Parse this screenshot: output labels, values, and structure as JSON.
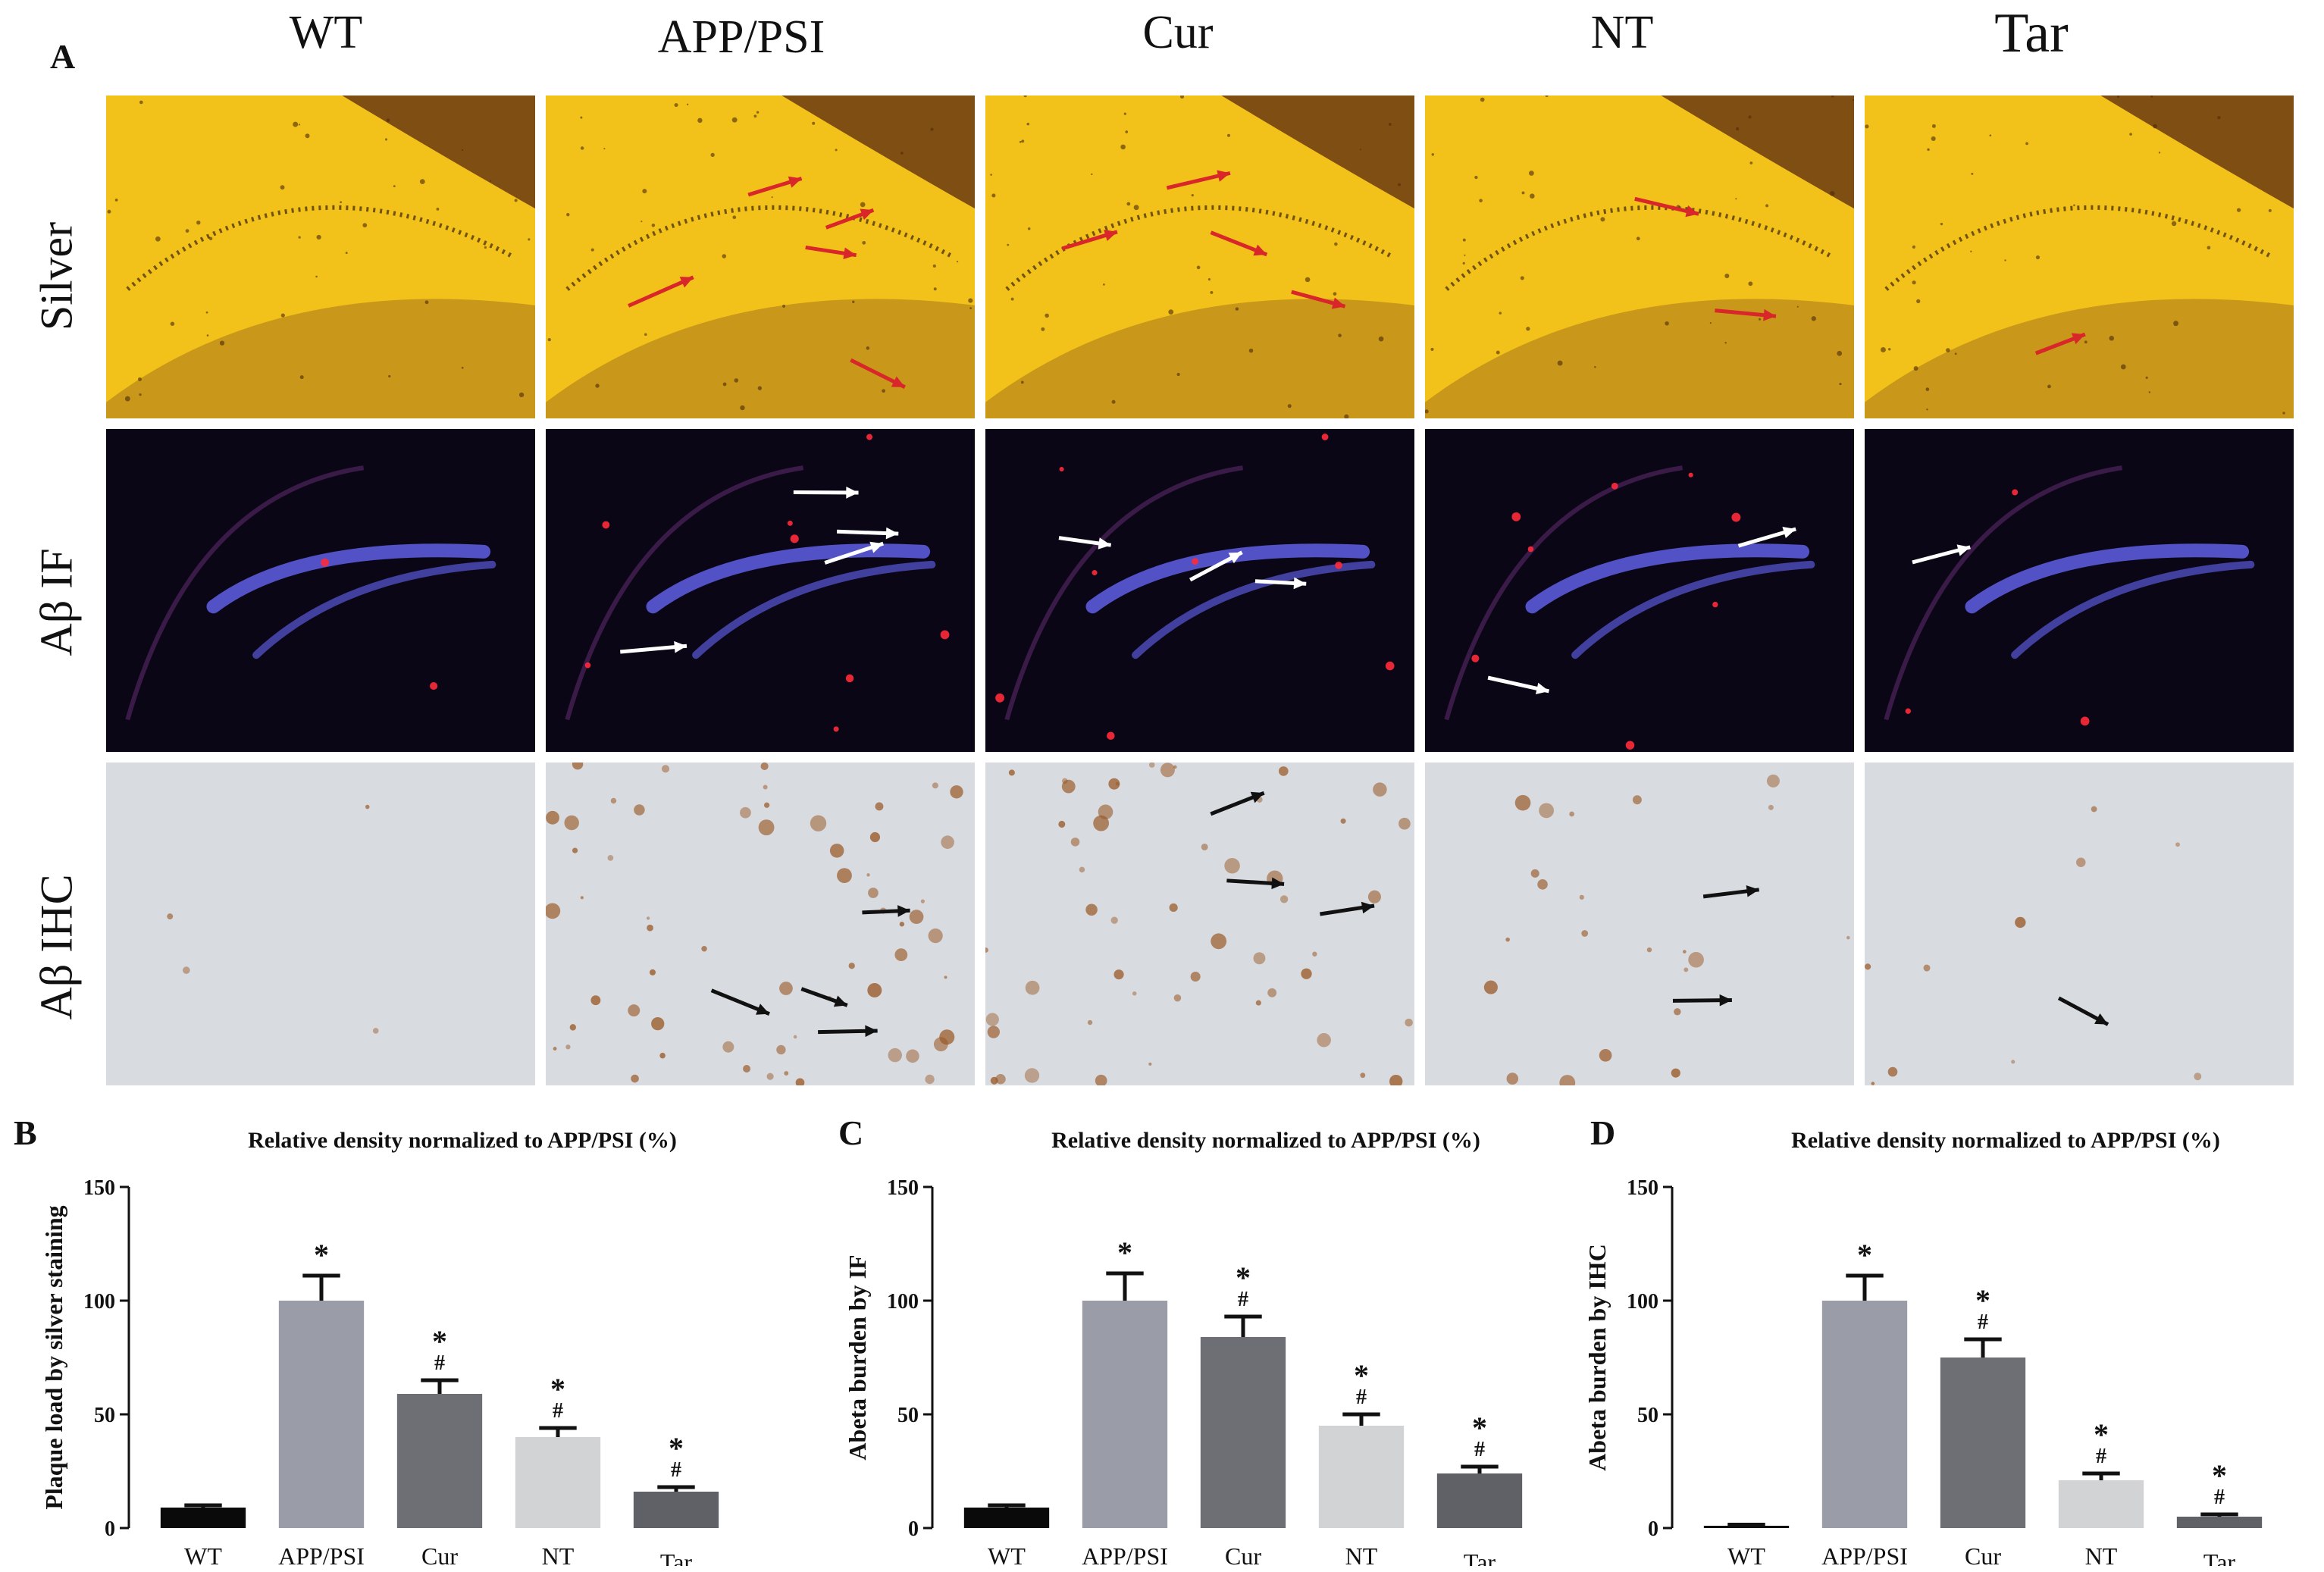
{
  "figure": {
    "panel_labels": {
      "a": "A",
      "b": "B",
      "c": "C",
      "d": "D"
    },
    "columns": [
      "WT",
      "APP/PSI",
      "Cur",
      "NT",
      "Tar"
    ],
    "rows": [
      "Silver",
      "Aβ IF",
      "Aβ IHC"
    ],
    "row_themes": {
      "Silver": {
        "base": "#f2c21a",
        "accent": "#6b3a12",
        "arrow": "#d8262a"
      },
      "Aβ IF": {
        "base": "#0b0616",
        "accent": "#5a5ad8",
        "arrow": "#ffffff"
      },
      "Aβ IHC": {
        "base": "#d8dbe0",
        "accent": "#9a5a28",
        "arrow": "#111111"
      }
    }
  },
  "chart_data": [
    {
      "type": "bar",
      "panel": "B",
      "title": "Relative density normalized to APP/PSI (%)",
      "ylabel": "Plaque load by silver staining",
      "xlabel": "",
      "categories": [
        "WT",
        "APP/PSI",
        "Cur",
        "NT",
        "Tar"
      ],
      "values": [
        9,
        100,
        59,
        40,
        16
      ],
      "errors": [
        1,
        11,
        6,
        4,
        2
      ],
      "bar_colors": [
        "#0a0a0a",
        "#9a9ca7",
        "#6e6f75",
        "#d2d3d5",
        "#606166"
      ],
      "annotations": [
        "",
        "*",
        "*\n#",
        "*\n#",
        "*\n#"
      ],
      "yticks": [
        0,
        50,
        100,
        150
      ],
      "ylim": [
        0,
        150
      ]
    },
    {
      "type": "bar",
      "panel": "C",
      "title": "Relative density normalized to APP/PSI (%)",
      "ylabel": "Abeta burden by IF",
      "xlabel": "",
      "categories": [
        "WT",
        "APP/PSI",
        "Cur",
        "NT",
        "Tar"
      ],
      "values": [
        9,
        100,
        84,
        45,
        24
      ],
      "errors": [
        1,
        12,
        9,
        5,
        3
      ],
      "bar_colors": [
        "#0a0a0a",
        "#9a9ca7",
        "#6e6f75",
        "#d2d3d5",
        "#606166"
      ],
      "annotations": [
        "",
        "*",
        "*\n#",
        "*\n#",
        "*\n#"
      ],
      "yticks": [
        0,
        50,
        100,
        150
      ],
      "ylim": [
        0,
        150
      ]
    },
    {
      "type": "bar",
      "panel": "D",
      "title": "Relative density normalized to APP/PSI (%)",
      "ylabel": "Abeta burden by IHC",
      "xlabel": "",
      "categories": [
        "WT",
        "APP/PSI",
        "Cur",
        "NT",
        "Tar"
      ],
      "values": [
        1,
        100,
        75,
        21,
        5
      ],
      "errors": [
        0.5,
        11,
        8,
        3,
        1
      ],
      "bar_colors": [
        "#0a0a0a",
        "#9a9ca7",
        "#6e6f75",
        "#d2d3d5",
        "#606166"
      ],
      "annotations": [
        "",
        "*",
        "*\n#",
        "*\n#",
        "*\n#"
      ],
      "yticks": [
        0,
        50,
        100,
        150
      ],
      "ylim": [
        0,
        150
      ]
    }
  ]
}
